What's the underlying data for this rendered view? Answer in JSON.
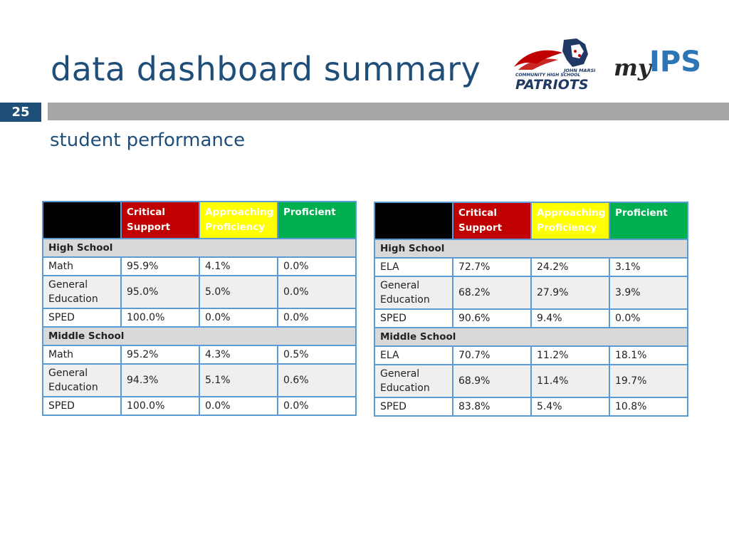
{
  "header": {
    "title": "data dashboard summary",
    "page_number": "25",
    "subtitle": "student performance"
  },
  "logos": {
    "school_line1": "JOHN MARSHALL",
    "school_line2": "COMMUNITY HIGH SCHOOL",
    "school_name": "PATRIOTS",
    "district_prefix": "my",
    "district_name": "IPS"
  },
  "colors": {
    "title": "#1f4e79",
    "critical": "#c00000",
    "approaching": "#ffff00",
    "proficient": "#00b050",
    "section": "#d9d9d9",
    "border": "#5b9bd5"
  },
  "tables": [
    {
      "columns": [
        "",
        "Critical Support",
        "Approaching Proficiency",
        "Proficient"
      ],
      "sections": [
        {
          "label": "High School",
          "rows": [
            {
              "subject": "Math",
              "critical": "95.9%",
              "approaching": "4.1%",
              "proficient": "0.0%"
            },
            {
              "subject": "General Education",
              "critical": "95.0%",
              "approaching": "5.0%",
              "proficient": "0.0%"
            },
            {
              "subject": "SPED",
              "critical": "100.0%",
              "approaching": "0.0%",
              "proficient": "0.0%"
            }
          ]
        },
        {
          "label": "Middle School",
          "rows": [
            {
              "subject": "Math",
              "critical": "95.2%",
              "approaching": "4.3%",
              "proficient": "0.5%"
            },
            {
              "subject": "General Education",
              "critical": "94.3%",
              "approaching": "5.1%",
              "proficient": "0.6%"
            },
            {
              "subject": "SPED",
              "critical": "100.0%",
              "approaching": "0.0%",
              "proficient": "0.0%"
            }
          ]
        }
      ]
    },
    {
      "columns": [
        "",
        "Critical Support",
        "Approaching Proficiency",
        "Proficient"
      ],
      "sections": [
        {
          "label": "High School",
          "rows": [
            {
              "subject": "ELA",
              "critical": "72.7%",
              "approaching": "24.2%",
              "proficient": "3.1%"
            },
            {
              "subject": "General Education",
              "critical": "68.2%",
              "approaching": "27.9%",
              "proficient": "3.9%"
            },
            {
              "subject": "SPED",
              "critical": "90.6%",
              "approaching": "9.4%",
              "proficient": "0.0%"
            }
          ]
        },
        {
          "label": "Middle School",
          "rows": [
            {
              "subject": "ELA",
              "critical": "70.7%",
              "approaching": "11.2%",
              "proficient": "18.1%"
            },
            {
              "subject": "General Education",
              "critical": "68.9%",
              "approaching": "11.4%",
              "proficient": "19.7%"
            },
            {
              "subject": "SPED",
              "critical": "83.8%",
              "approaching": "5.4%",
              "proficient": "10.8%"
            }
          ]
        }
      ]
    }
  ]
}
